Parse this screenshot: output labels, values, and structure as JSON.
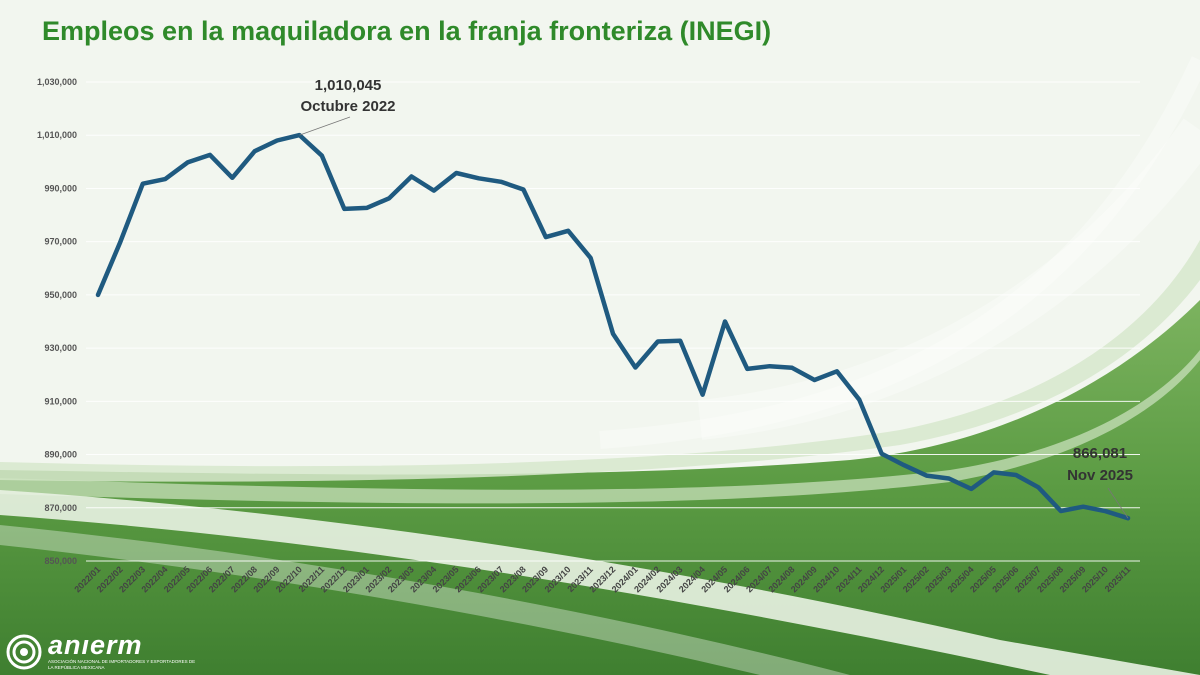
{
  "title": "Empleos en la maquiladora en la franja fronteriza (INEGI)",
  "logo": {
    "name": "anıerm",
    "subtitle": "ASOCIACIÓN NACIONAL DE IMPORTADORES Y EXPORTADORES DE LA REPÚBLICA MEXICANA"
  },
  "colors": {
    "title": "#2f8a2a",
    "line": "#1f5a80",
    "background_green": "#5d9f46"
  },
  "chart_data": {
    "type": "line",
    "title": "Empleos en la maquiladora en la franja fronteriza (INEGI)",
    "xlabel": "",
    "ylabel": "",
    "ylim": [
      850000,
      1030000
    ],
    "yticks": [
      850000,
      870000,
      890000,
      910000,
      930000,
      950000,
      970000,
      990000,
      1010000,
      1030000
    ],
    "ytick_labels": [
      "850,000",
      "870,000",
      "890,000",
      "910,000",
      "930,000",
      "950,000",
      "970,000",
      "990,000",
      "1,010,000",
      "1,030,000"
    ],
    "grid": true,
    "legend": "none",
    "categories": [
      "2022/01",
      "2022/02",
      "2022/03",
      "2022/04",
      "2022/05",
      "2022/06",
      "2022/07",
      "2022/08",
      "2022/09",
      "2022/10",
      "2022/11",
      "2022/12",
      "2023/01",
      "2023/02",
      "2023/03",
      "2023/04",
      "2023/05",
      "2023/06",
      "2023/07",
      "2023/08",
      "2023/09",
      "2023/10",
      "2023/11",
      "2023/12",
      "2024/01",
      "2024/02",
      "2024/03",
      "2024/04",
      "2024/05",
      "2024/06",
      "2024/07",
      "2024/08",
      "2024/09",
      "2024/10",
      "2024/11",
      "2024/12",
      "2025/01",
      "2025/02",
      "2025/03",
      "2025/04",
      "2025/05",
      "2025/06",
      "2025/07",
      "2025/08",
      "2025/09",
      "2025/10",
      "2025/11"
    ],
    "values": [
      950000,
      970000,
      991800,
      993500,
      999800,
      1002600,
      994000,
      1004000,
      1008000,
      1010045,
      1002300,
      982300,
      982700,
      986300,
      994500,
      989200,
      995800,
      993800,
      992500,
      989600,
      971700,
      974100,
      963900,
      935400,
      922700,
      932500,
      932800,
      912500,
      940000,
      922200,
      923200,
      922600,
      918000,
      921300,
      910600,
      890300,
      886000,
      882100,
      881000,
      877100,
      883300,
      882300,
      877700,
      868800,
      870400,
      868700,
      866081
    ],
    "annotations": [
      {
        "index": 9,
        "value_text": "1,010,045",
        "label": "Octubre 2022"
      },
      {
        "index": 46,
        "value_text": "866,081",
        "label": "Nov 2025"
      }
    ]
  }
}
